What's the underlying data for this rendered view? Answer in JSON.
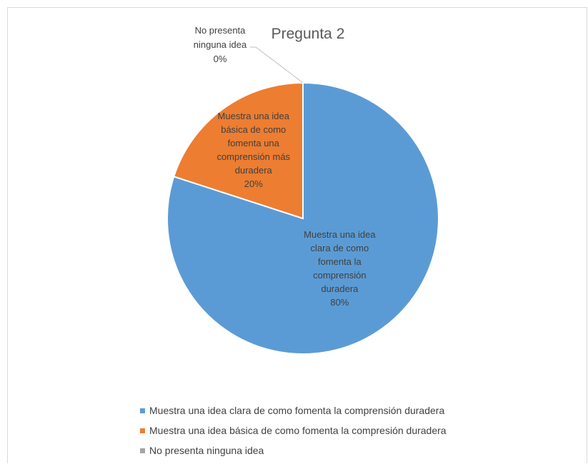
{
  "chart_data": {
    "type": "pie",
    "title": "Pregunta 2",
    "series": [
      {
        "name": "",
        "slices": [
          {
            "label": "Muestra una idea clara de como fomenta la comprensión duradera",
            "value": 80,
            "percent_label": "80%",
            "color": "#5b9bd5",
            "data_label_lines": [
              "Muestra una idea",
              "clara de como",
              "fomenta la",
              "comprensión",
              "duradera",
              "80%"
            ]
          },
          {
            "label": "Muestra una idea básica de como fomenta la compresión duradera",
            "value": 20,
            "percent_label": "20%",
            "color": "#ed7d31",
            "data_label_lines": [
              "Muestra una idea",
              "básica de como",
              "fomenta una",
              "comprensión más",
              "duradera",
              "20%"
            ]
          },
          {
            "label": "No presenta ninguna idea",
            "value": 0,
            "percent_label": "0%",
            "color": "#a5a5a5",
            "data_label_lines": [
              "No presenta",
              "ninguna idea",
              "0%"
            ]
          }
        ]
      }
    ],
    "legend": {
      "placement": "bottom",
      "entries": [
        "Muestra una idea clara de como fomenta la comprensión duradera",
        "Muestra una idea básica de como fomenta la compresión duradera",
        "No presenta ninguna idea"
      ]
    },
    "colors": {
      "text_dark": "#404040",
      "title": "#595959",
      "leader_line": "#bfbfbf"
    }
  }
}
